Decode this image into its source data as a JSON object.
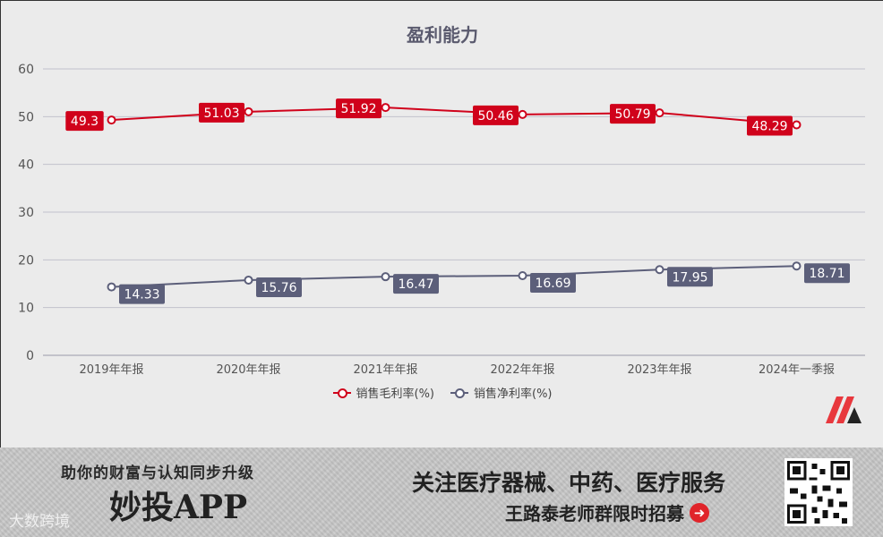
{
  "chart_data": {
    "type": "line",
    "title": "盈利能力",
    "categories": [
      "2019年年报",
      "2020年年报",
      "2021年年报",
      "2022年年报",
      "2023年年报",
      "2024年一季报"
    ],
    "series": [
      {
        "name": "销售毛利率(%)",
        "color": "#d0021b",
        "values": [
          49.3,
          51.03,
          51.92,
          50.46,
          50.79,
          48.29
        ],
        "labels": [
          "49.3",
          "51.03",
          "51.92",
          "50.46",
          "50.79",
          "48.29"
        ]
      },
      {
        "name": "销售净利率(%)",
        "color": "#5c5f7a",
        "values": [
          14.33,
          15.76,
          16.47,
          16.69,
          17.95,
          18.71
        ],
        "labels": [
          "14.33",
          "15.76",
          "16.47",
          "16.69",
          "17.95",
          "18.71"
        ]
      }
    ],
    "yticks": [
      "0",
      "10",
      "20",
      "30",
      "40",
      "50",
      "60"
    ],
    "ylim": [
      0,
      60
    ],
    "grid": true,
    "legend_position": "bottom"
  },
  "banner": {
    "slogan": "助你的财富与认知同步升级",
    "app_name": "妙投APP",
    "watermark": "大数跨境",
    "focus": "关注医疗器械、中药、医疗服务",
    "teacher": "王路泰老师群限时招募"
  },
  "icons": {
    "brand": "miaotou-logo-icon",
    "arrow": "arrow-right-circle-icon",
    "qr": "qr-code-icon"
  }
}
